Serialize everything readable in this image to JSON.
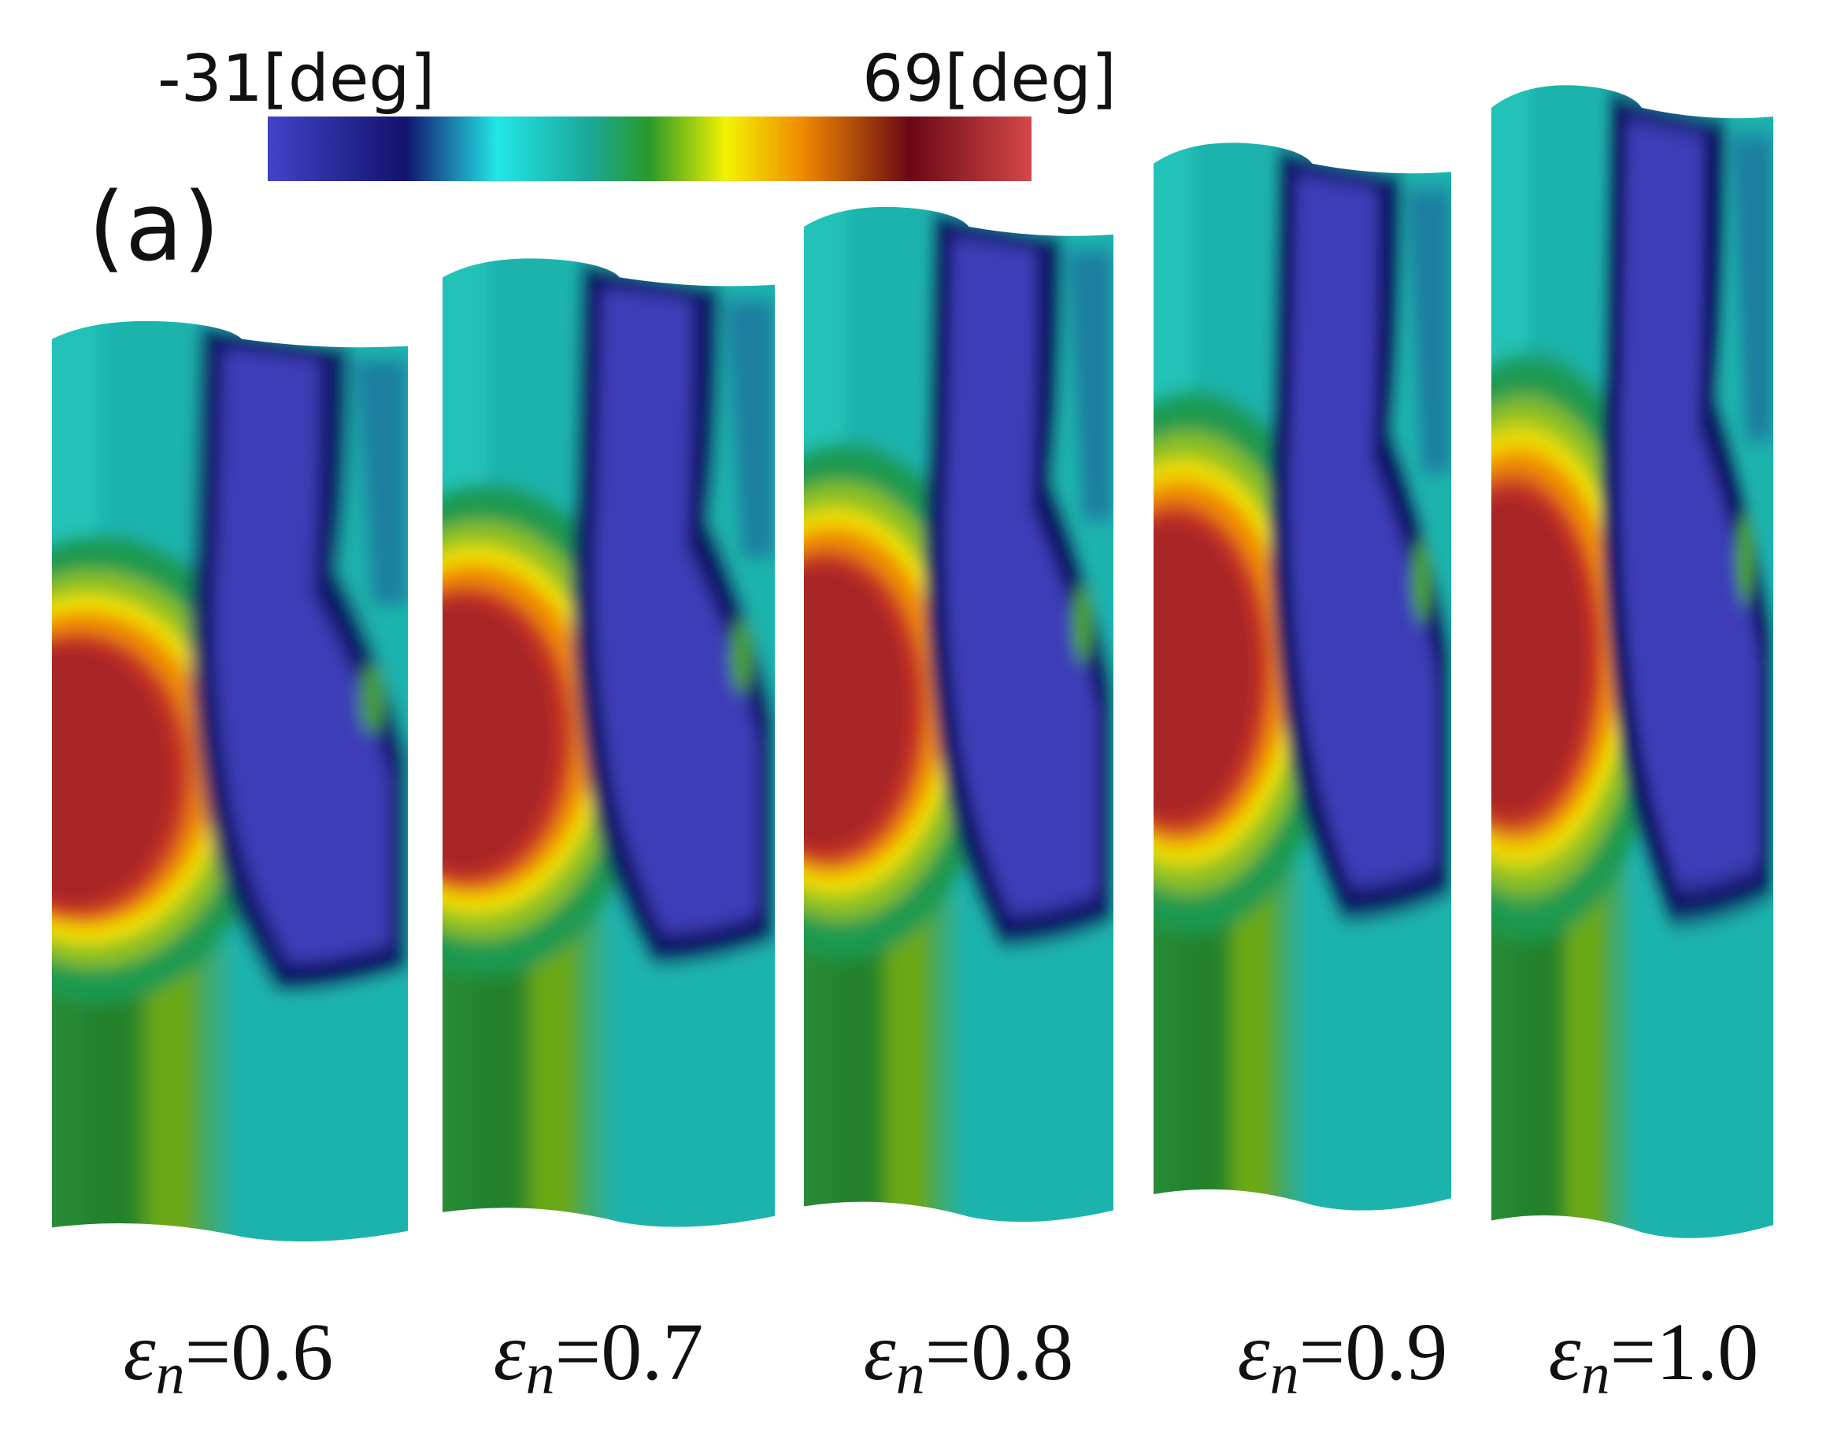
{
  "colorbar": {
    "min_label": "-31[deg]",
    "max_label": "69[deg]"
  },
  "panel_label": "(a)",
  "specimens": [
    {
      "symbol": "ε",
      "subscript": "n",
      "value_text": "=0.6"
    },
    {
      "symbol": "ε",
      "subscript": "n",
      "value_text": "=0.7"
    },
    {
      "symbol": "ε",
      "subscript": "n",
      "value_text": "=0.8"
    },
    {
      "symbol": "ε",
      "subscript": "n",
      "value_text": "=0.9"
    },
    {
      "symbol": "ε",
      "subscript": "n",
      "value_text": "=1.0"
    }
  ]
}
